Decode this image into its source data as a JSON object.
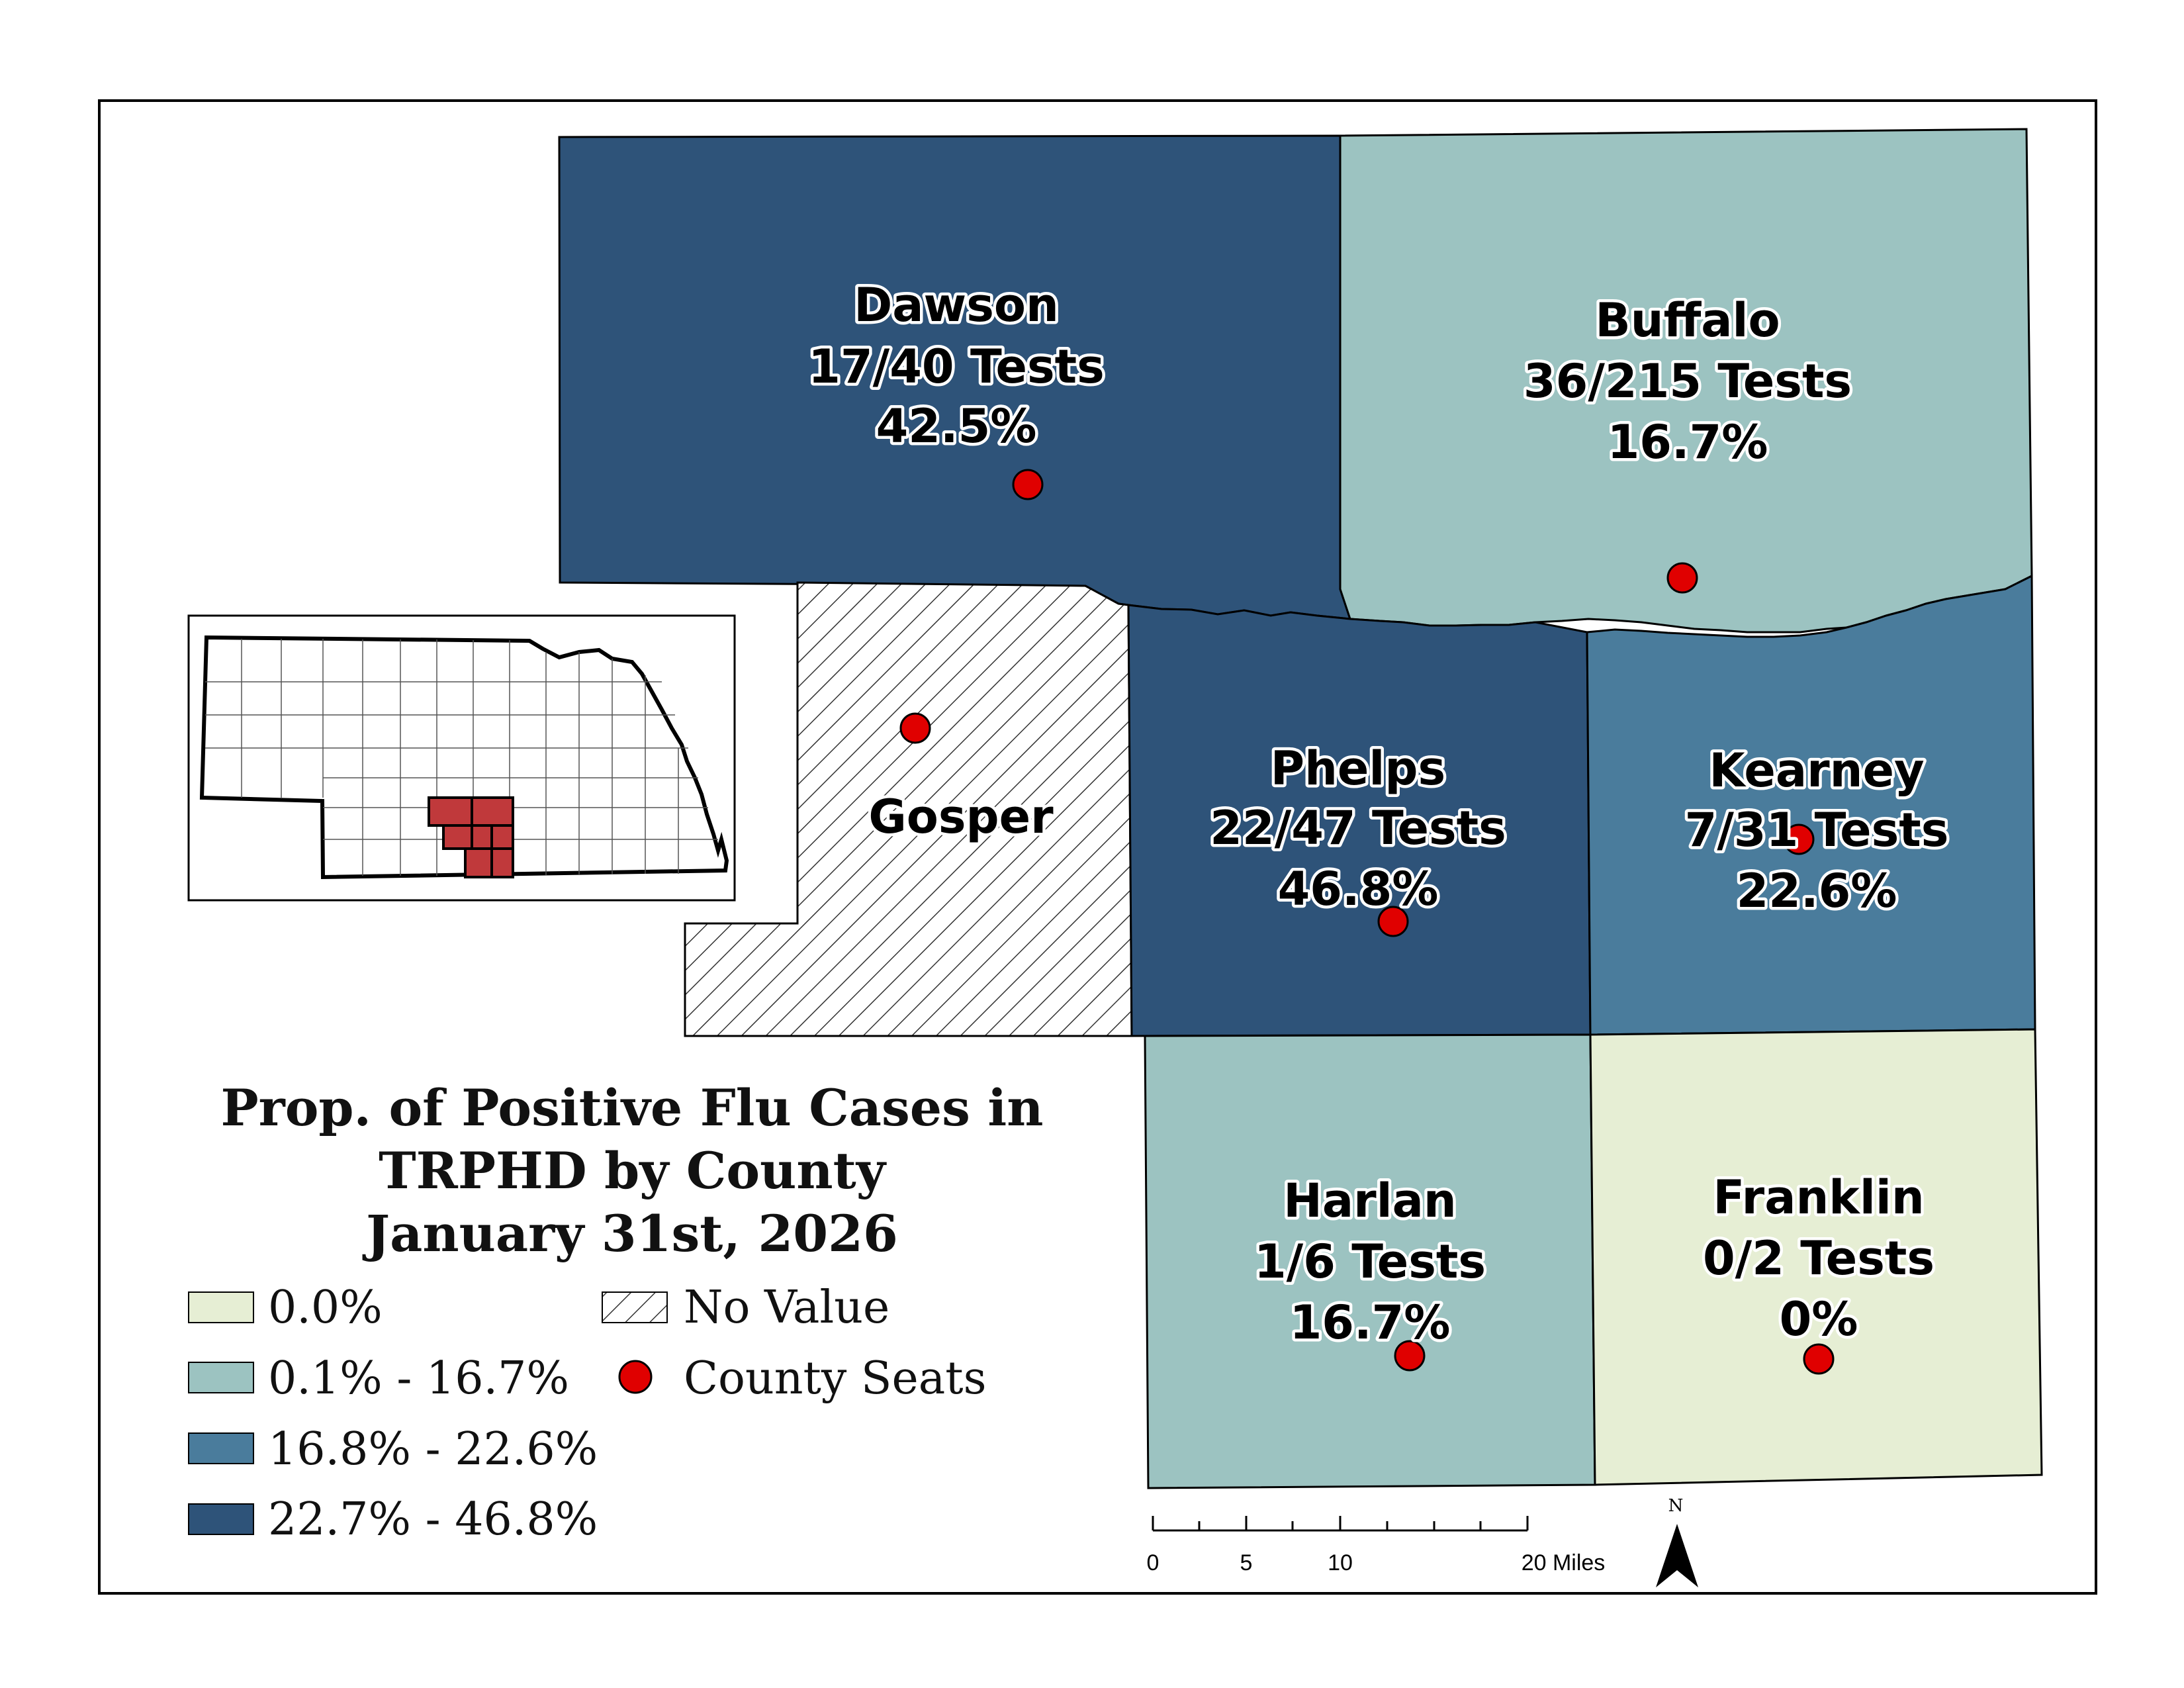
{
  "map": {
    "title_lines": [
      "Prop. of Positive Flu Cases in",
      "TRPHD by County",
      "January 31st, 2026"
    ]
  },
  "colors": {
    "zero": "#e6eed4",
    "low": "#9cc3c1",
    "mid": "#4a7c9c",
    "high": "#2e5379",
    "seat": "#e00000",
    "outline": "#000000"
  },
  "counties": [
    {
      "name": "Dawson",
      "tests": "17/40 Tests",
      "percent": "42.5%",
      "value": 42.5,
      "class": "high"
    },
    {
      "name": "Buffalo",
      "tests": "36/215 Tests",
      "percent": "16.7%",
      "value": 16.7,
      "class": "low"
    },
    {
      "name": "Gosper",
      "tests": "",
      "percent": "",
      "value": null,
      "class": "none"
    },
    {
      "name": "Phelps",
      "tests": "22/47 Tests",
      "percent": "46.8%",
      "value": 46.8,
      "class": "high"
    },
    {
      "name": "Kearney",
      "tests": "7/31 Tests",
      "percent": "22.6%",
      "value": 22.6,
      "class": "mid"
    },
    {
      "name": "Harlan",
      "tests": "1/6 Tests",
      "percent": "16.7%",
      "value": 16.7,
      "class": "low"
    },
    {
      "name": "Franklin",
      "tests": "0/2 Tests",
      "percent": "0%",
      "value": 0,
      "class": "zero"
    }
  ],
  "legend": {
    "items": [
      "0.0%",
      "0.1% - 16.7%",
      "16.8% - 22.6%",
      "22.7% - 46.8%"
    ],
    "no_value": "No Value",
    "county_seats": "County Seats"
  },
  "scale": {
    "ticks": [
      "0",
      "5",
      "10",
      "20 Miles"
    ]
  },
  "north": {
    "label": "N"
  }
}
